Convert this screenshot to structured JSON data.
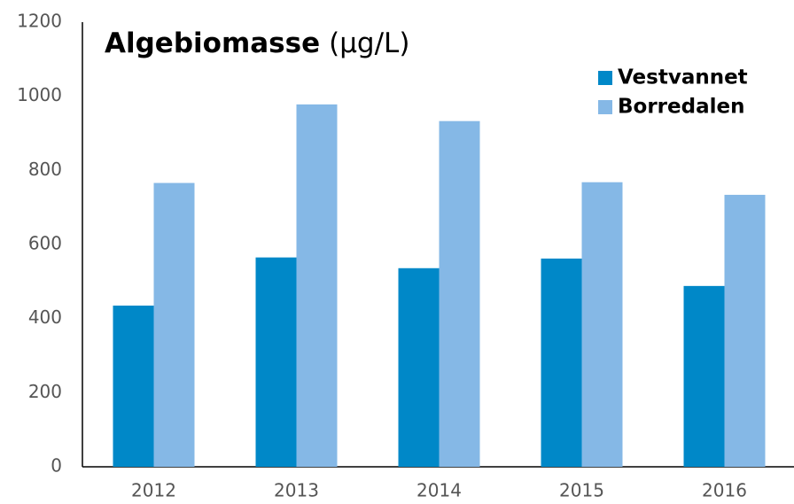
{
  "chart_data": {
    "type": "bar",
    "title": "Algebiomasse",
    "title_unit": "(µg/L)",
    "categories": [
      "2012",
      "2013",
      "2014",
      "2015",
      "2016"
    ],
    "series": [
      {
        "name": "Vestvannet",
        "color": "#0088c8",
        "values": [
          435,
          565,
          536,
          562,
          488
        ]
      },
      {
        "name": "Borredalen",
        "color": "#85b8e6",
        "values": [
          766,
          978,
          933,
          768,
          734
        ]
      }
    ],
    "ylim": [
      0,
      1200
    ],
    "yticks": [
      0,
      200,
      400,
      600,
      800,
      1000,
      1200
    ],
    "grid": false,
    "legend": "top-right"
  }
}
